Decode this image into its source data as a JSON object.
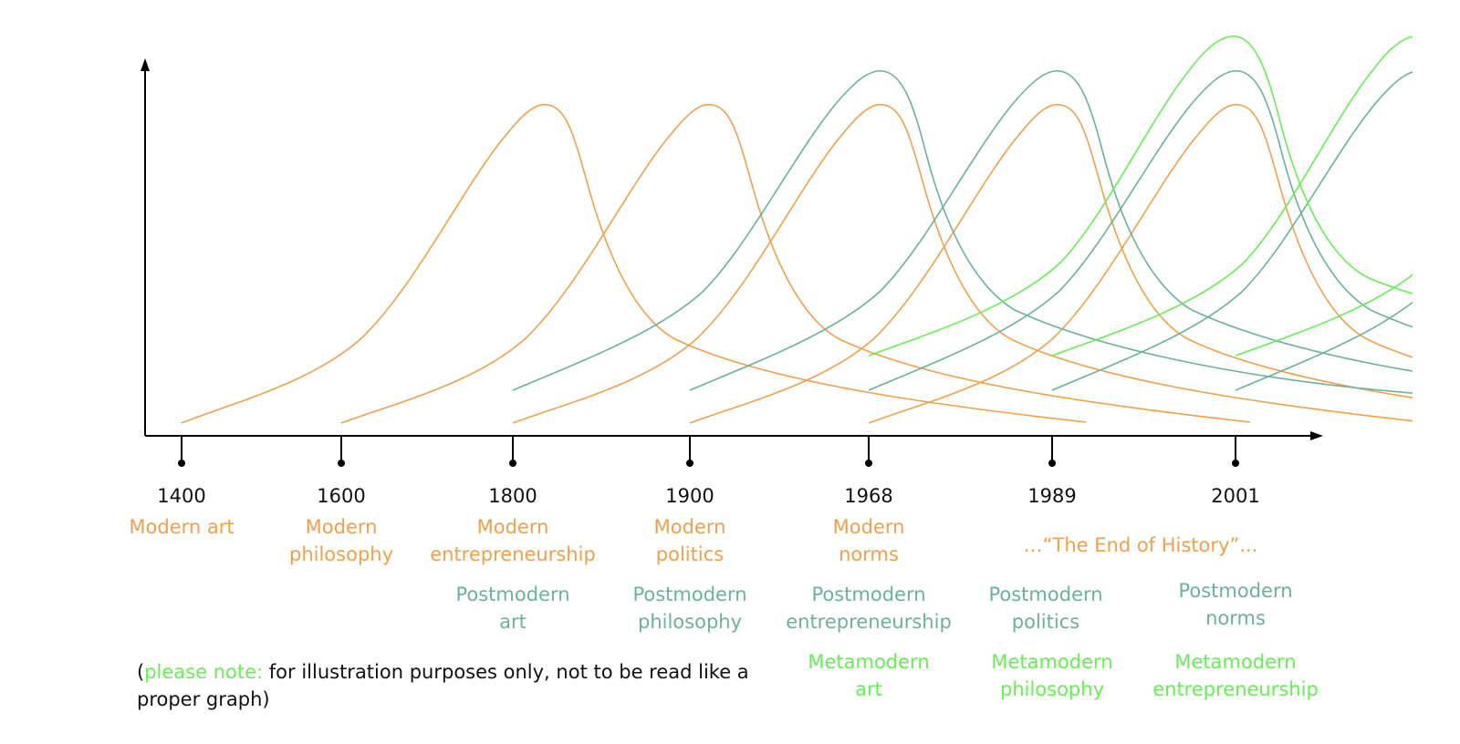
{
  "colors": {
    "modern": "#f0a04b",
    "postmodern": "#6bb29a",
    "metamodern": "#66ee55",
    "axis": "#000000"
  },
  "years": [
    "1400",
    "1600",
    "1800",
    "1900",
    "1968",
    "1989",
    "2001"
  ],
  "modern_labels": [
    {
      "l1": "Modern art",
      "l2": ""
    },
    {
      "l1": "Modern",
      "l2": "philosophy"
    },
    {
      "l1": "Modern",
      "l2": "entrepreneurship"
    },
    {
      "l1": "Modern",
      "l2": "politics"
    },
    {
      "l1": "Modern",
      "l2": "norms"
    }
  ],
  "end_of_history": "…“The End of History”...",
  "postmodern_labels": [
    {
      "l1": "Postmodern",
      "l2": "art"
    },
    {
      "l1": "Postmodern",
      "l2": "philosophy"
    },
    {
      "l1": "Postmodern",
      "l2": "entrepreneurship"
    },
    {
      "l1": "Postmodern",
      "l2": "politics"
    },
    {
      "l1": "Postmodern",
      "l2": "norms"
    }
  ],
  "metamodern_labels": [
    {
      "l1": "Metamodern",
      "l2": "art"
    },
    {
      "l1": "Metamodern",
      "l2": "philosophy"
    },
    {
      "l1": "Metamodern",
      "l2": "entrepreneurship"
    }
  ],
  "note": {
    "open": "(",
    "highlight": "please note:",
    "rest": " for illustration purposes only, not to be read like a proper graph)"
  }
}
